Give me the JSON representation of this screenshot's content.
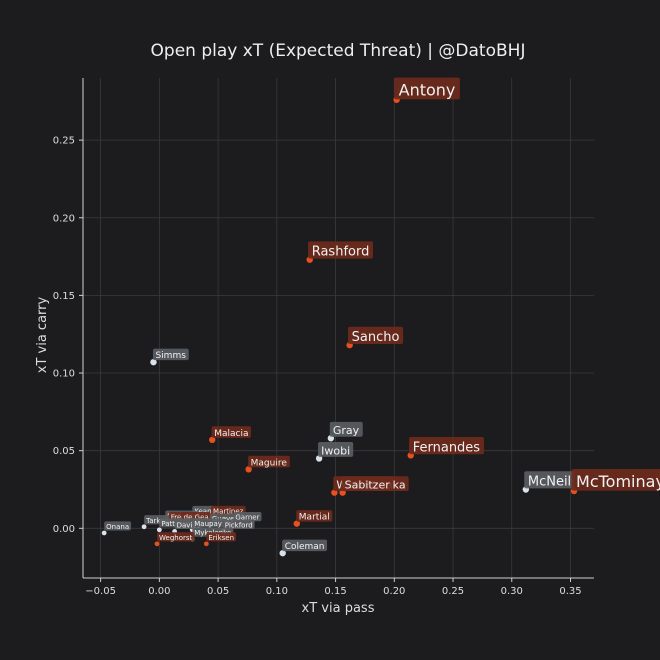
{
  "chart_data": {
    "type": "scatter",
    "title": "Open play xT (Expected Threat) | @DatoBHJ",
    "xlabel": "xT via pass",
    "ylabel": "xT via carry",
    "xlim": [
      -0.065,
      0.37
    ],
    "ylim": [
      -0.032,
      0.29
    ],
    "x_ticks": [
      -0.05,
      0.0,
      0.05,
      0.1,
      0.15,
      0.2,
      0.25,
      0.3,
      0.35
    ],
    "y_ticks": [
      0.0,
      0.05,
      0.1,
      0.15,
      0.2,
      0.25
    ],
    "grid": true,
    "colors": {
      "highlight": "#e8501f",
      "other": "#d8e2ea",
      "label_highlight_bg": "#6e2a1c",
      "label_other_bg": "#5a5d5f"
    },
    "points": [
      {
        "name": "Antony",
        "x": 0.202,
        "y": 0.276,
        "group": "highlight",
        "size": "xl"
      },
      {
        "name": "Rashford",
        "x": 0.128,
        "y": 0.173,
        "group": "highlight",
        "size": "l"
      },
      {
        "name": "Sancho",
        "x": 0.162,
        "y": 0.118,
        "group": "highlight",
        "size": "l"
      },
      {
        "name": "Simms",
        "x": -0.005,
        "y": 0.107,
        "group": "other",
        "size": "s"
      },
      {
        "name": "Gray",
        "x": 0.146,
        "y": 0.058,
        "group": "other",
        "size": "m"
      },
      {
        "name": "Iwobi",
        "x": 0.136,
        "y": 0.045,
        "group": "other",
        "size": "m"
      },
      {
        "name": "Fernandes",
        "x": 0.214,
        "y": 0.047,
        "group": "highlight",
        "size": "l"
      },
      {
        "name": "Malacia",
        "x": 0.045,
        "y": 0.057,
        "group": "highlight",
        "size": "s"
      },
      {
        "name": "Maguire",
        "x": 0.076,
        "y": 0.038,
        "group": "highlight",
        "size": "s"
      },
      {
        "name": "Wan-Bissaka",
        "x": 0.149,
        "y": 0.023,
        "group": "highlight",
        "size": "m"
      },
      {
        "name": "Sabitzer",
        "x": 0.156,
        "y": 0.023,
        "group": "highlight",
        "size": "m"
      },
      {
        "name": "McNeil",
        "x": 0.312,
        "y": 0.025,
        "group": "other",
        "size": "l"
      },
      {
        "name": "McTominay",
        "x": 0.353,
        "y": 0.024,
        "group": "highlight",
        "size": "xl"
      },
      {
        "name": "Martial",
        "x": 0.117,
        "y": 0.003,
        "group": "highlight",
        "size": "s"
      },
      {
        "name": "Coleman",
        "x": 0.105,
        "y": -0.016,
        "group": "other",
        "size": "s"
      },
      {
        "name": "Keane",
        "x": 0.028,
        "y": 0.007,
        "group": "other",
        "size": "xs"
      },
      {
        "name": "Godfrey",
        "x": 0.005,
        "y": 0.004,
        "group": "other",
        "size": "xs"
      },
      {
        "name": "Tarkowski",
        "x": -0.013,
        "y": 0.001,
        "group": "other",
        "size": "xs"
      },
      {
        "name": "Fred",
        "x": 0.008,
        "y": 0.003,
        "group": "highlight",
        "size": "xs"
      },
      {
        "name": "de Gea",
        "x": 0.019,
        "y": 0.003,
        "group": "highlight",
        "size": "xs"
      },
      {
        "name": "Martinez",
        "x": 0.044,
        "y": 0.007,
        "group": "highlight",
        "size": "xs"
      },
      {
        "name": "Gueye",
        "x": 0.043,
        "y": 0.002,
        "group": "other",
        "size": "xs"
      },
      {
        "name": "Garner",
        "x": 0.063,
        "y": 0.003,
        "group": "other",
        "size": "xs"
      },
      {
        "name": "Patterson",
        "x": 0.0,
        "y": -0.001,
        "group": "other",
        "size": "xs"
      },
      {
        "name": "Onana",
        "x": -0.047,
        "y": -0.003,
        "group": "other",
        "size": "xs"
      },
      {
        "name": "Davies",
        "x": 0.013,
        "y": -0.002,
        "group": "other",
        "size": "xs"
      },
      {
        "name": "Maupay",
        "x": 0.028,
        "y": -0.001,
        "group": "other",
        "size": "xs"
      },
      {
        "name": "Pickford",
        "x": 0.054,
        "y": -0.002,
        "group": "other",
        "size": "xs"
      },
      {
        "name": "Mykolenko",
        "x": 0.028,
        "y": -0.007,
        "group": "other",
        "size": "xs"
      },
      {
        "name": "Eriksen",
        "x": 0.04,
        "y": -0.01,
        "group": "highlight",
        "size": "xs"
      },
      {
        "name": "Weghorst",
        "x": -0.002,
        "y": -0.01,
        "group": "highlight",
        "size": "xs"
      }
    ]
  }
}
